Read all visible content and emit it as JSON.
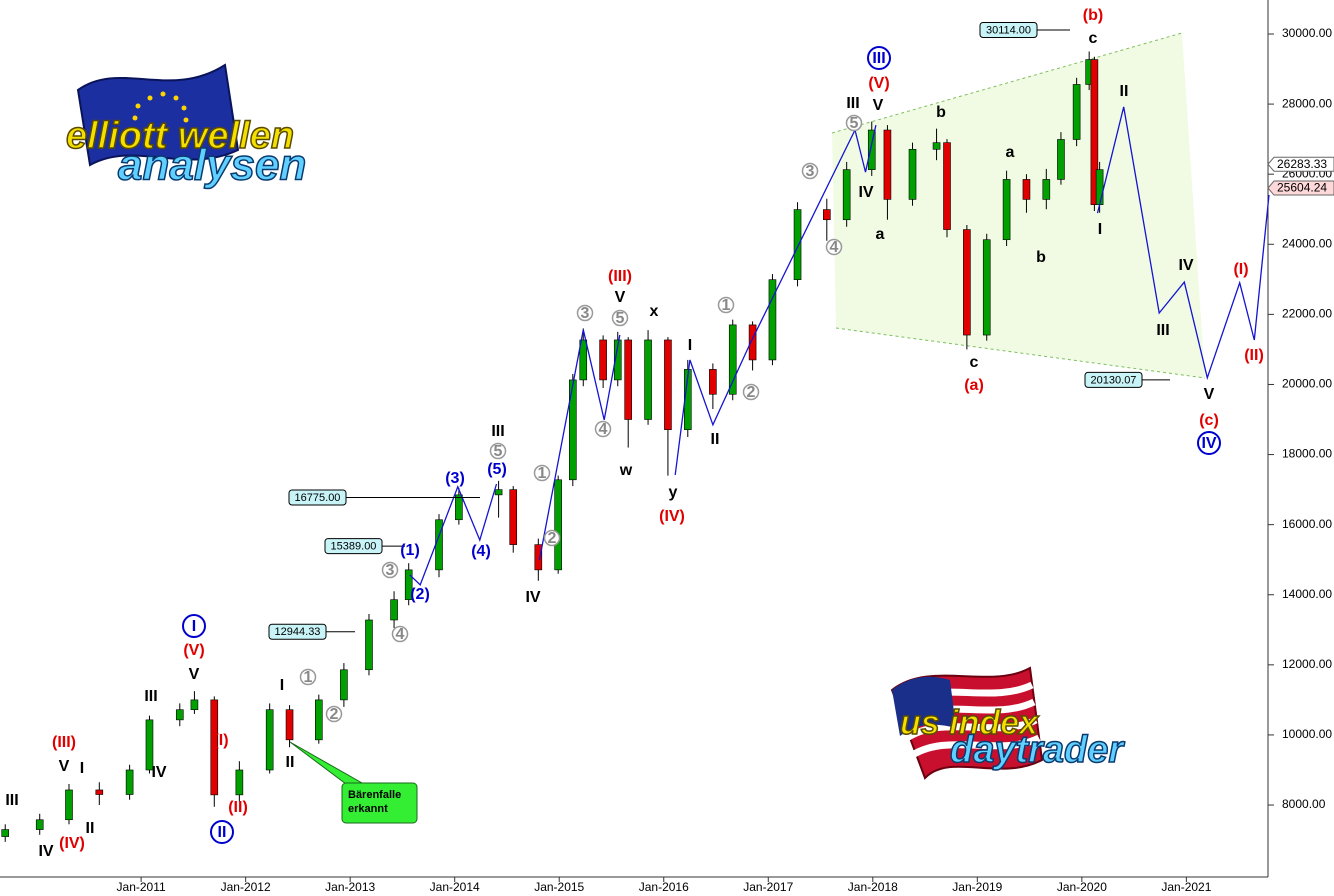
{
  "chart_data": {
    "type": "candlestick",
    "xlim": [
      2009.65,
      2021.8
    ],
    "ylim": [
      5975,
      30970
    ],
    "grid": false,
    "up_color": "#00a000",
    "down_color": "#e00000",
    "xticks": [
      {
        "value": 2011,
        "label": "Jan-2011"
      },
      {
        "value": 2012,
        "label": "Jan-2012"
      },
      {
        "value": 2013,
        "label": "Jan-2013"
      },
      {
        "value": 2014,
        "label": "Jan-2014"
      },
      {
        "value": 2015,
        "label": "Jan-2015"
      },
      {
        "value": 2016,
        "label": "Jan-2016"
      },
      {
        "value": 2017,
        "label": "Jan-2017"
      },
      {
        "value": 2018,
        "label": "Jan-2018"
      },
      {
        "value": 2019,
        "label": "Jan-2019"
      },
      {
        "value": 2020,
        "label": "Jan-2020"
      },
      {
        "value": 2021,
        "label": "Jan-2021"
      }
    ],
    "yticks": [
      {
        "value": 8000,
        "label": "8000.00"
      },
      {
        "value": 10000,
        "label": "10000.00"
      },
      {
        "value": 12000,
        "label": "12000.00"
      },
      {
        "value": 14000,
        "label": "14000.00"
      },
      {
        "value": 16000,
        "label": "16000.00"
      },
      {
        "value": 18000,
        "label": "18000.00"
      },
      {
        "value": 20000,
        "label": "20000.00"
      },
      {
        "value": 22000,
        "label": "22000.00"
      },
      {
        "value": 24000,
        "label": "24000.00"
      },
      {
        "value": 26000,
        "label": "26000.00"
      },
      {
        "value": 28000,
        "label": "28000.00"
      },
      {
        "value": 30000,
        "label": "30000.00"
      }
    ],
    "candles": {
      "x": [
        2009.7,
        2010.03,
        2010.31,
        2010.6,
        2010.89,
        2011.08,
        2011.37,
        2011.51,
        2011.7,
        2011.94,
        2012.23,
        2012.42,
        2012.7,
        2012.94,
        2013.18,
        2013.42,
        2013.56,
        2013.85,
        2014.04,
        2014.42,
        2014.56,
        2014.8,
        2014.99,
        2015.13,
        2015.23,
        2015.42,
        2015.56,
        2015.66,
        2015.85,
        2016.04,
        2016.23,
        2016.47,
        2016.66,
        2016.85,
        2017.04,
        2017.28,
        2017.56,
        2017.75,
        2017.99,
        2018.14,
        2018.38,
        2018.61,
        2018.71,
        2018.9,
        2019.09,
        2019.28,
        2019.47,
        2019.66,
        2019.8,
        2019.95,
        2020.07,
        2020.12,
        2020.17
      ],
      "open": [
        7100,
        7300,
        7580,
        8430,
        8300,
        9000,
        10430,
        10720,
        11000,
        8290,
        9000,
        10720,
        9860,
        11000,
        11860,
        13280,
        13860,
        14710,
        16140,
        16850,
        17000,
        15430,
        14710,
        17280,
        20130,
        21270,
        20130,
        21270,
        19000,
        21270,
        18710,
        20430,
        19720,
        21700,
        20700,
        22990,
        24990,
        24700,
        26130,
        27260,
        25280,
        26710,
        26900,
        24420,
        21410,
        24130,
        25850,
        25280,
        25850,
        26990,
        28560,
        29270,
        25130
      ],
      "high": [
        7450,
        7750,
        8600,
        8650,
        9150,
        10550,
        10900,
        11250,
        11100,
        9250,
        10900,
        10850,
        11150,
        12050,
        13450,
        14100,
        14900,
        16300,
        17050,
        17250,
        17100,
        15600,
        17400,
        20300,
        21600,
        21400,
        21500,
        21350,
        21550,
        21350,
        20700,
        20600,
        21850,
        21800,
        23150,
        25200,
        25300,
        26350,
        27500,
        27400,
        26900,
        27300,
        27000,
        24550,
        24300,
        26100,
        26000,
        26150,
        27200,
        28750,
        29500,
        29350,
        26350
      ],
      "low": [
        6950,
        7150,
        7450,
        8000,
        8150,
        8900,
        10250,
        10600,
        7950,
        8100,
        8900,
        9650,
        9750,
        10800,
        11700,
        13050,
        13700,
        14500,
        16000,
        16200,
        15200,
        14400,
        14600,
        17100,
        19950,
        19900,
        19950,
        18200,
        18850,
        17400,
        18500,
        19300,
        19550,
        20400,
        20550,
        22800,
        24100,
        24500,
        25950,
        24700,
        25100,
        26400,
        24200,
        21000,
        21250,
        23950,
        24900,
        25000,
        25700,
        26800,
        28400,
        24950,
        24900
      ],
      "close": [
        7300,
        7580,
        8430,
        8300,
        9000,
        10430,
        10720,
        11000,
        8290,
        9000,
        10720,
        9860,
        11000,
        11860,
        13280,
        13860,
        14710,
        16140,
        16850,
        17000,
        15430,
        14710,
        17280,
        20130,
        21270,
        20130,
        21270,
        19000,
        21270,
        18710,
        20430,
        19720,
        21700,
        20700,
        22990,
        24990,
        24700,
        26130,
        27260,
        25280,
        26710,
        26900,
        24420,
        21410,
        24130,
        25850,
        25280,
        25850,
        26990,
        28560,
        29270,
        25130,
        26130
      ]
    },
    "wave_path": {
      "color": "#1414d2",
      "x": [
        2013.57,
        2013.67,
        2014.03,
        2014.24,
        2014.4,
        null,
        2014.81,
        2015.23,
        2015.43,
        2015.58,
        null,
        2016.11,
        2016.25,
        2016.47,
        2016.82,
        2017.83,
        2017.93,
        2018.03,
        null,
        2020.15,
        2020.4,
        2020.74,
        2020.98,
        2021.2,
        2021.51,
        2021.65,
        2021.79
      ],
      "values": [
        14570,
        14280,
        17080,
        15560,
        17160,
        null,
        14990,
        21560,
        18990,
        21410,
        null,
        17420,
        20700,
        18850,
        21130,
        27260,
        26060,
        27400,
        null,
        24890,
        27920,
        22040,
        22920,
        20190,
        22900,
        21270,
        25410
      ]
    },
    "price_markers": [
      {
        "value": 30114,
        "label": "30114.00"
      },
      20130.07,
      {
        "value": 16775,
        "label": "16775.00"
      },
      {
        "value": 15389,
        "label": "15389.00"
      },
      12944.33
    ],
    "last_prices": [
      26283.33,
      25604.24
    ],
    "wave_labels": {
      "black": [
        "III",
        "IV",
        "V",
        "I",
        "II",
        "III",
        "IV",
        "V",
        "I",
        "II",
        "III",
        "IV",
        "V",
        "x",
        "w",
        "y",
        "I",
        "II",
        "III",
        "V",
        "IV",
        "a",
        "b",
        "c",
        "a",
        "b",
        "c",
        "II",
        "I",
        "IV",
        "III",
        "V"
      ],
      "red": [
        "(III)",
        "(IV)",
        "(V)",
        "(I)",
        "(II)",
        "(III)",
        "(IV)",
        "(V)",
        "(b)",
        "(a)",
        "(c)",
        "(I)",
        "(II)"
      ],
      "blue_circled": [
        "I",
        "II",
        "III",
        "IV"
      ],
      "gray_circled": [
        "1",
        "2",
        "3",
        "4",
        "5",
        "1",
        "2",
        "3",
        "5",
        "4",
        "1",
        "2",
        "3",
        "4",
        "5"
      ],
      "blue_small": [
        "(1)",
        "(2)",
        "(3)",
        "(4)",
        "(5)"
      ]
    },
    "callout": {
      "lines": [
        "Bärenfalle",
        "erkannt"
      ]
    },
    "logos": [
      {
        "lines": [
          "elliott wellen",
          "analysen"
        ]
      },
      {
        "lines": [
          "us index",
          "daytrader"
        ]
      }
    ]
  }
}
